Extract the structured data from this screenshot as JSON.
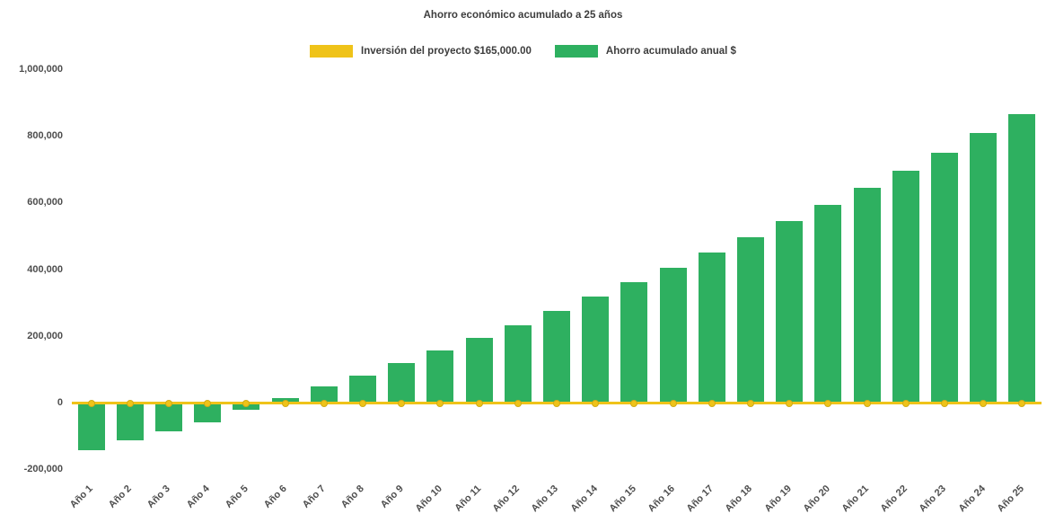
{
  "chart_data": {
    "type": "bar",
    "title": "Ahorro económico acumulado a 25 años",
    "categories": [
      "Año 1",
      "Año 2",
      "Año 3",
      "Año 4",
      "Año 5",
      "Año 6",
      "Año 7",
      "Año 8",
      "Año 9",
      "Año 10",
      "Año 11",
      "Año 12",
      "Año 13",
      "Año 14",
      "Año 15",
      "Año 16",
      "Año 17",
      "Año 18",
      "Año 19",
      "Año 20",
      "Año 21",
      "Año 22",
      "Año 23",
      "Año 24",
      "Año 25"
    ],
    "series": [
      {
        "name": "Inversión del proyecto $165,000.00",
        "type": "line",
        "color": "#EFC319",
        "values": [
          0,
          0,
          0,
          0,
          0,
          0,
          0,
          0,
          0,
          0,
          0,
          0,
          0,
          0,
          0,
          0,
          0,
          0,
          0,
          0,
          0,
          0,
          0,
          0,
          0
        ]
      },
      {
        "name": "Ahorro acumulado anual $",
        "type": "bar",
        "color": "#2EB060",
        "values": [
          -140000,
          -110000,
          -85000,
          -57000,
          -20000,
          15000,
          50000,
          84000,
          120000,
          158000,
          196000,
          235000,
          276000,
          320000,
          364000,
          408000,
          452000,
          498000,
          546000,
          596000,
          646000,
          698000,
          752000,
          810000,
          868000
        ]
      }
    ],
    "ylim": [
      -200000,
      1000000
    ],
    "yticks": [
      -200000,
      0,
      200000,
      400000,
      600000,
      800000,
      1000000
    ],
    "ytick_labels": [
      "-200,000",
      "0",
      "200,000",
      "400,000",
      "600,000",
      "800,000",
      "1,000,000"
    ],
    "legend_position": "top",
    "grid": false,
    "colors": {
      "background": "#ffffff",
      "text": "#3d3d3d",
      "axis_text": "#4d4d4d"
    }
  }
}
